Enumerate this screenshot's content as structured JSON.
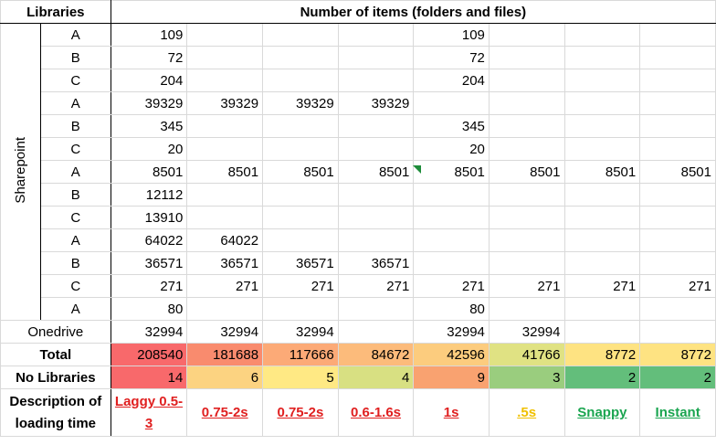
{
  "header": {
    "libraries": "Libraries",
    "items": "Number of items (folders and files)"
  },
  "group_label": "Sharepoint",
  "rows": [
    {
      "lib": "A",
      "v": [
        "109",
        "",
        "",
        "",
        "109",
        "",
        "",
        ""
      ]
    },
    {
      "lib": "B",
      "v": [
        "72",
        "",
        "",
        "",
        "72",
        "",
        "",
        ""
      ]
    },
    {
      "lib": "C",
      "v": [
        "204",
        "",
        "",
        "",
        "204",
        "",
        "",
        ""
      ]
    },
    {
      "lib": "A",
      "v": [
        "39329",
        "39329",
        "39329",
        "39329",
        "",
        "",
        "",
        ""
      ]
    },
    {
      "lib": "B",
      "v": [
        "345",
        "",
        "",
        "",
        "345",
        "",
        "",
        ""
      ]
    },
    {
      "lib": "C",
      "v": [
        "20",
        "",
        "",
        "",
        "20",
        "",
        "",
        ""
      ]
    },
    {
      "lib": "A",
      "v": [
        "8501",
        "8501",
        "8501",
        "8501",
        "8501",
        "8501",
        "8501",
        "8501"
      ]
    },
    {
      "lib": "B",
      "v": [
        "12112",
        "",
        "",
        "",
        "",
        "",
        "",
        ""
      ]
    },
    {
      "lib": "C",
      "v": [
        "13910",
        "",
        "",
        "",
        "",
        "",
        "",
        ""
      ]
    },
    {
      "lib": "A",
      "v": [
        "64022",
        "64022",
        "",
        "",
        "",
        "",
        "",
        ""
      ]
    },
    {
      "lib": "B",
      "v": [
        "36571",
        "36571",
        "36571",
        "36571",
        "",
        "",
        "",
        ""
      ]
    },
    {
      "lib": "C",
      "v": [
        "271",
        "271",
        "271",
        "271",
        "271",
        "271",
        "271",
        "271"
      ]
    },
    {
      "lib": "A",
      "v": [
        "80",
        "",
        "",
        "",
        "80",
        "",
        "",
        ""
      ]
    }
  ],
  "onedrive": {
    "label": "Onedrive",
    "v": [
      "32994",
      "32994",
      "32994",
      "",
      "32994",
      "32994",
      "",
      ""
    ]
  },
  "total": {
    "label": "Total",
    "v": [
      "208540",
      "181688",
      "117666",
      "84672",
      "42596",
      "41766",
      "8772",
      "8772"
    ],
    "colors": [
      "#f8696b",
      "#f98b6e",
      "#fcaa77",
      "#fcbb7b",
      "#fccc7e",
      "#e0e283",
      "#fee382",
      "#fee382"
    ]
  },
  "nolib": {
    "label": "No Libraries",
    "v": [
      "14",
      "6",
      "5",
      "4",
      "9",
      "3",
      "2",
      "2"
    ],
    "colors": [
      "#f8696b",
      "#fcd381",
      "#ffe984",
      "#d8e082",
      "#f9a270",
      "#9acd7e",
      "#63be7b",
      "#63be7b"
    ]
  },
  "desc": {
    "label": "Description of loading time",
    "v": [
      "Laggy 0.5-3",
      "0.75-2s",
      "0.75-2s",
      "0.6-1.6s",
      "1s",
      ".5s",
      "Snappy",
      "Instant"
    ],
    "tone": [
      "red",
      "red",
      "red",
      "red",
      "red",
      "amber",
      "green",
      "green"
    ]
  }
}
